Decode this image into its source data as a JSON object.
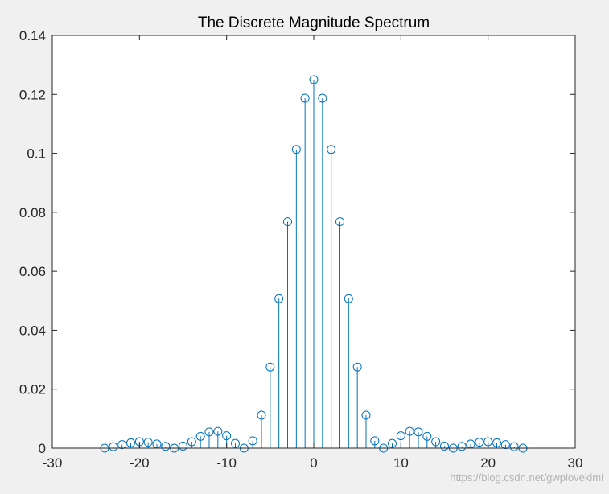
{
  "chart_data": {
    "type": "stem",
    "title": "The Discrete Magnitude Spectrum",
    "xlabel": "",
    "ylabel": "",
    "xlim": [
      -30,
      30
    ],
    "ylim": [
      0,
      0.14
    ],
    "xticks": [
      "-30",
      "-20",
      "-10",
      "0",
      "10",
      "20",
      "30"
    ],
    "yticks": [
      "0",
      "0.02",
      "0.04",
      "0.06",
      "0.08",
      "0.1",
      "0.12",
      "0.14"
    ],
    "grid": false,
    "x": [
      -24,
      -23,
      -22,
      -21,
      -20,
      -19,
      -18,
      -17,
      -16,
      -15,
      -14,
      -13,
      -12,
      -11,
      -10,
      -9,
      -8,
      -7,
      -6,
      -5,
      -4,
      -3,
      -2,
      -1,
      0,
      1,
      2,
      3,
      4,
      5,
      6,
      7,
      8,
      9,
      10,
      11,
      12,
      13,
      14,
      15,
      16,
      17,
      18,
      19,
      20,
      21,
      22,
      23,
      24
    ],
    "values": [
      0.0,
      0.0005,
      0.0012,
      0.0018,
      0.0022,
      0.002,
      0.0014,
      0.0006,
      0.0,
      0.0007,
      0.0022,
      0.004,
      0.0055,
      0.0057,
      0.0042,
      0.0016,
      0.0,
      0.0025,
      0.0112,
      0.0275,
      0.0507,
      0.0768,
      0.1013,
      0.1187,
      0.125,
      0.1187,
      0.1013,
      0.0768,
      0.0507,
      0.0275,
      0.0112,
      0.0025,
      0.0,
      0.0016,
      0.0042,
      0.0057,
      0.0055,
      0.004,
      0.0022,
      0.0007,
      0.0,
      0.0006,
      0.0014,
      0.002,
      0.0022,
      0.0018,
      0.0012,
      0.0005,
      0.0
    ],
    "color": "#0072BD",
    "marker": "open-circle"
  },
  "watermark": "https://blog.csdn.net/gwplovekimi"
}
